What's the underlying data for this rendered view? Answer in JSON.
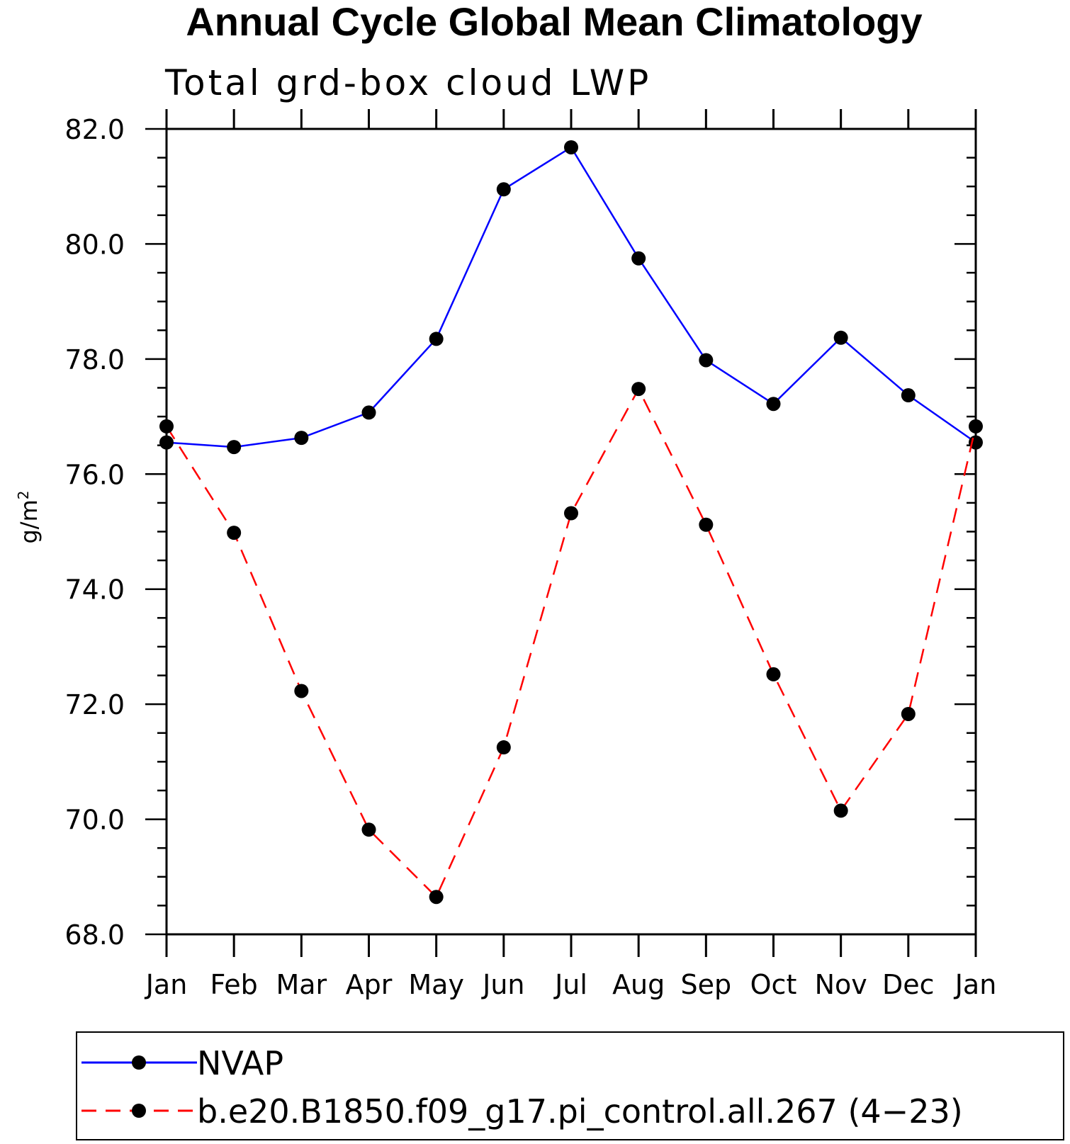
{
  "chart_data": {
    "type": "line",
    "title": "Annual Cycle Global Mean Climatology",
    "subtitle": "Total grd-box cloud LWP",
    "xlabel": "",
    "ylabel": "g/m",
    "ylabel_superscript": "2",
    "categories": [
      "Jan",
      "Feb",
      "Mar",
      "Apr",
      "May",
      "Jun",
      "Jul",
      "Aug",
      "Sep",
      "Oct",
      "Nov",
      "Dec",
      "Jan"
    ],
    "ylim": [
      68.0,
      82.0
    ],
    "yticks": [
      "68.0",
      "70.0",
      "72.0",
      "74.0",
      "76.0",
      "78.0",
      "80.0",
      "82.0"
    ],
    "series": [
      {
        "name": "NVAP",
        "color": "#0000ff",
        "dash": "solid",
        "values": [
          76.55,
          76.47,
          76.63,
          77.07,
          78.35,
          80.95,
          81.68,
          79.75,
          77.98,
          77.22,
          78.37,
          77.37,
          76.55
        ]
      },
      {
        "name": "b.e20.B1850.f09_g17.pi_control.all.267 (4-23)",
        "color": "#ff0000",
        "dash": "dashed",
        "values": [
          76.83,
          74.98,
          72.23,
          69.82,
          68.65,
          71.25,
          75.32,
          77.48,
          75.12,
          72.52,
          70.15,
          71.83,
          76.83
        ]
      }
    ],
    "legend": [
      "NVAP",
      "b.e20.B1850.f09_g17.pi_control.all.267 (4−23)"
    ],
    "legend_position": "bottom",
    "grid": false
  }
}
